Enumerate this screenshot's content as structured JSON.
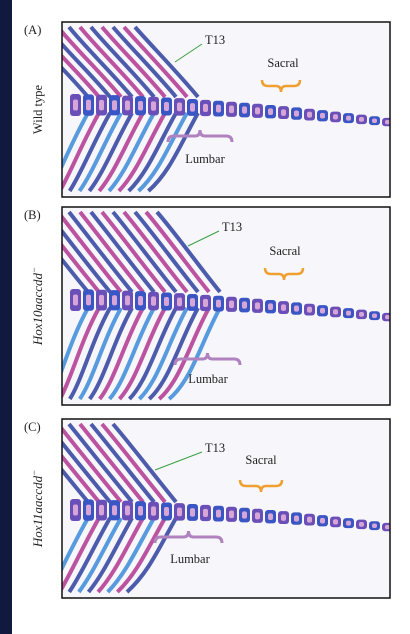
{
  "panels": [
    {
      "letter": "(A)",
      "genotype": "Wild type",
      "t13": "T13",
      "sacral": "Sacral",
      "lumbar": "Lumbar"
    },
    {
      "letter": "(B)",
      "genotype": "Hox10aaccdd",
      "genotype_sup": "−",
      "t13": "T13",
      "sacral": "Sacral",
      "lumbar": "Lumbar"
    },
    {
      "letter": "(C)",
      "genotype": "Hox11aaccdd",
      "genotype_sup": "−",
      "t13": "T13",
      "sacral": "Sacral",
      "lumbar": "Lumbar"
    }
  ]
}
